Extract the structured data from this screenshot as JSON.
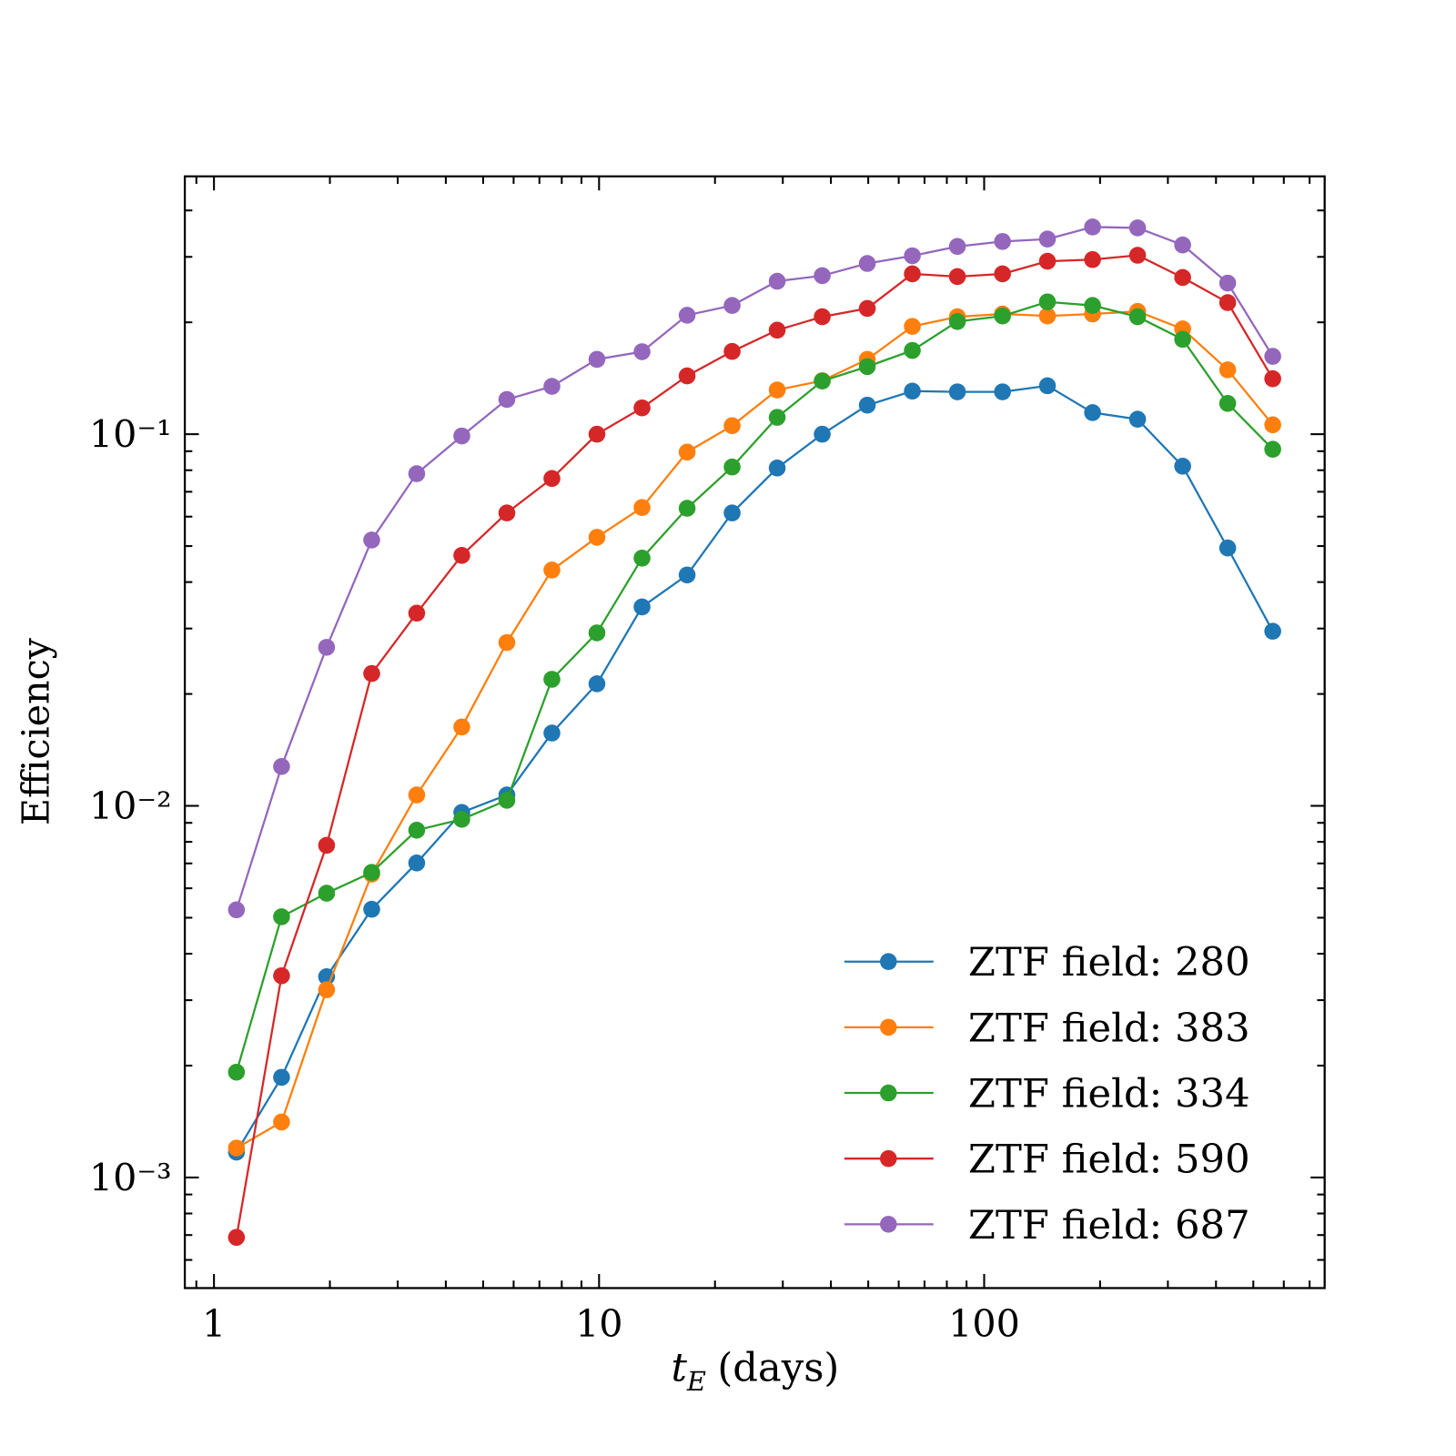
{
  "chart_data": {
    "type": "line",
    "xlabel": {
      "var": "t",
      "sub": "E",
      "unit": "(days)"
    },
    "ylabel": "Efficiency",
    "x": [
      1.144,
      1.498,
      1.961,
      2.568,
      3.361,
      4.401,
      5.762,
      7.543,
      9.874,
      12.93,
      16.93,
      22.16,
      29.01,
      37.98,
      49.72,
      65.09,
      85.21,
      111.6,
      146.0,
      191.2,
      250.3,
      327.7,
      429.0,
      561.6
    ],
    "series": [
      {
        "name": "ZTF field: 280",
        "color": "#1f77b4",
        "values": [
          0.00117,
          0.00186,
          0.00347,
          0.00527,
          0.00702,
          0.0096,
          0.0107,
          0.0157,
          0.0213,
          0.0343,
          0.0418,
          0.0614,
          0.0811,
          0.1,
          0.1197,
          0.1306,
          0.13,
          0.13,
          0.135,
          0.1143,
          0.1097,
          0.082,
          0.0494,
          0.0295
        ]
      },
      {
        "name": "ZTF field: 383",
        "color": "#ff7f0e",
        "values": [
          0.0012,
          0.00141,
          0.0032,
          0.00655,
          0.0107,
          0.0163,
          0.0275,
          0.0431,
          0.0528,
          0.0635,
          0.0895,
          0.1054,
          0.1315,
          0.1393,
          0.159,
          0.195,
          0.207,
          0.2106,
          0.208,
          0.2106,
          0.214,
          0.192,
          0.149,
          0.106
        ]
      },
      {
        "name": "ZTF field: 334",
        "color": "#2ca02c",
        "values": [
          0.00192,
          0.00503,
          0.00582,
          0.00662,
          0.0086,
          0.0092,
          0.01035,
          0.0219,
          0.0292,
          0.0464,
          0.0632,
          0.0816,
          0.111,
          0.139,
          0.152,
          0.168,
          0.201,
          0.208,
          0.227,
          0.222,
          0.207,
          0.18,
          0.121,
          0.0911
        ]
      },
      {
        "name": "ZTF field: 590",
        "color": "#d62728",
        "values": [
          0.00069,
          0.00349,
          0.00783,
          0.0227,
          0.033,
          0.0472,
          0.0614,
          0.076,
          0.1,
          0.1177,
          0.1435,
          0.167,
          0.1905,
          0.207,
          0.218,
          0.27,
          0.2655,
          0.27,
          0.292,
          0.295,
          0.303,
          0.264,
          0.226,
          0.141
        ]
      },
      {
        "name": "ZTF field: 687",
        "color": "#9467bd",
        "values": [
          0.00525,
          0.01276,
          0.0267,
          0.0519,
          0.0783,
          0.0989,
          0.124,
          0.1345,
          0.159,
          0.1667,
          0.209,
          0.222,
          0.258,
          0.267,
          0.288,
          0.302,
          0.32,
          0.33,
          0.335,
          0.361,
          0.359,
          0.323,
          0.255,
          0.162
        ]
      }
    ],
    "xscale": "log",
    "yscale": "log",
    "xlim": [
      0.84,
      766
    ],
    "ylim": [
      0.000504,
      0.494
    ],
    "xticks": [
      1,
      10,
      100
    ],
    "yticks": [
      {
        "value": 0.001,
        "label": "10⁻³"
      },
      {
        "value": 0.01,
        "label": "10⁻²"
      },
      {
        "value": 0.1,
        "label": "10⁻¹"
      }
    ],
    "xminorticks": [
      0.9,
      2,
      3,
      4,
      5,
      6,
      7,
      8,
      9,
      20,
      30,
      40,
      50,
      60,
      70,
      80,
      90,
      200,
      300,
      400,
      500,
      600,
      700
    ],
    "yminorticks": [
      0.0006,
      0.0007,
      0.0008,
      0.0009,
      0.002,
      0.003,
      0.004,
      0.005,
      0.006,
      0.007,
      0.008,
      0.009,
      0.02,
      0.03,
      0.04,
      0.05,
      0.06,
      0.07,
      0.08,
      0.09,
      0.2,
      0.3,
      0.4
    ],
    "legend": "lower right"
  }
}
